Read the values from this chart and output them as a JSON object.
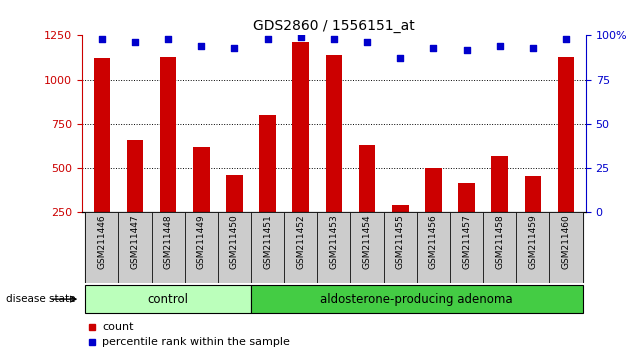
{
  "title": "GDS2860 / 1556151_at",
  "categories": [
    "GSM211446",
    "GSM211447",
    "GSM211448",
    "GSM211449",
    "GSM211450",
    "GSM211451",
    "GSM211452",
    "GSM211453",
    "GSM211454",
    "GSM211455",
    "GSM211456",
    "GSM211457",
    "GSM211458",
    "GSM211459",
    "GSM211460"
  ],
  "bar_values": [
    1120,
    660,
    1130,
    620,
    460,
    800,
    1210,
    1140,
    630,
    290,
    500,
    415,
    570,
    455,
    1130
  ],
  "dot_values": [
    98,
    96,
    98,
    94,
    93,
    98,
    99,
    98,
    96,
    87,
    93,
    92,
    94,
    93,
    98
  ],
  "bar_color": "#cc0000",
  "dot_color": "#0000cc",
  "ylim_left": [
    250,
    1250
  ],
  "ylim_right": [
    0,
    100
  ],
  "yticks_left": [
    250,
    500,
    750,
    1000,
    1250
  ],
  "yticks_right": [
    0,
    25,
    50,
    75,
    100
  ],
  "ytick_labels_right": [
    "0",
    "25",
    "50",
    "75",
    "100%"
  ],
  "grid_values": [
    500,
    750,
    1000
  ],
  "control_count": 5,
  "adenoma_count": 10,
  "control_label": "control",
  "adenoma_label": "aldosterone-producing adenoma",
  "disease_state_label": "disease state",
  "legend_count_label": "count",
  "legend_percentile_label": "percentile rank within the sample",
  "control_color": "#bbffbb",
  "adenoma_color": "#44cc44",
  "xlabel_area_color": "#cccccc",
  "background_color": "#ffffff"
}
